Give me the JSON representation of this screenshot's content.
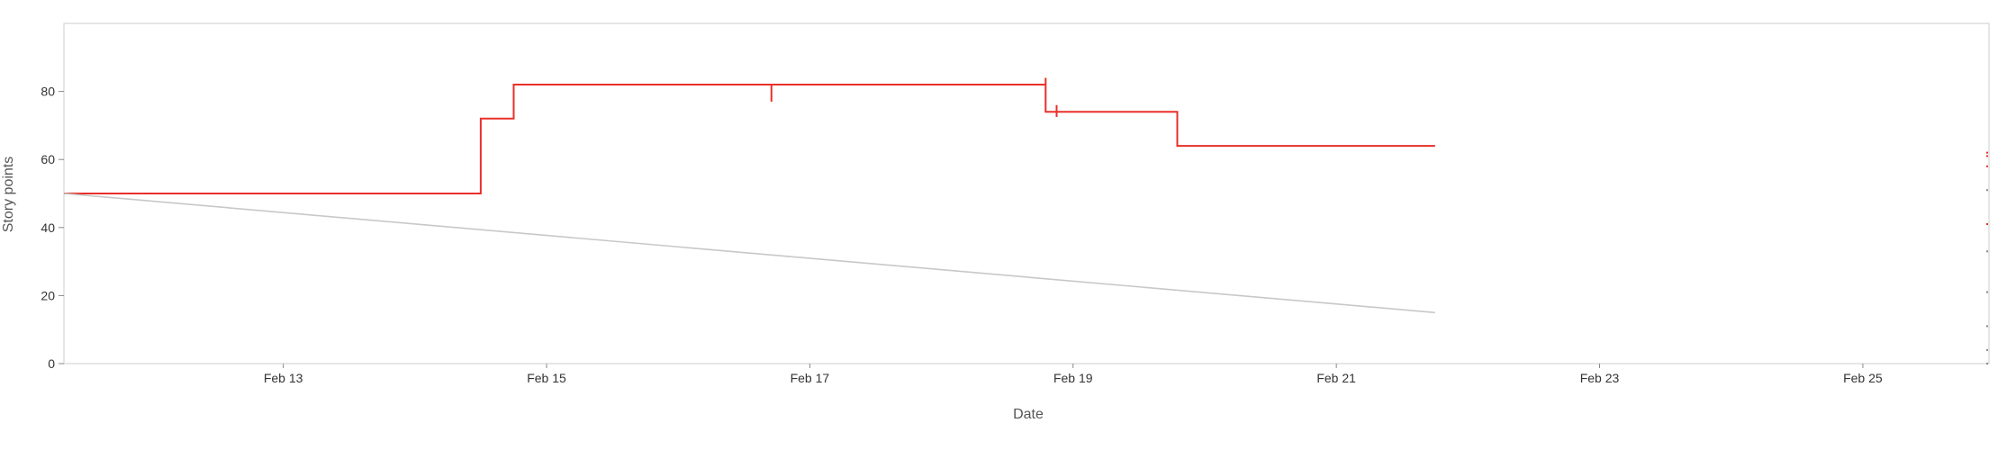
{
  "chart_data": {
    "type": "line",
    "title": "",
    "xlabel": "Date",
    "ylabel": "Story points",
    "xlim": [
      "2026-02-11T08:00",
      "2026-02-25T23:00"
    ],
    "ylim": [
      0,
      100
    ],
    "x_ticks": [
      {
        "date": "2026-02-13",
        "label": "Feb 13"
      },
      {
        "date": "2026-02-15",
        "label": "Feb 15"
      },
      {
        "date": "2026-02-17",
        "label": "Feb 17"
      },
      {
        "date": "2026-02-19",
        "label": "Feb 19"
      },
      {
        "date": "2026-02-21",
        "label": "Feb 21"
      },
      {
        "date": "2026-02-23",
        "label": "Feb 23"
      },
      {
        "date": "2026-02-25",
        "label": "Feb 25"
      }
    ],
    "y_ticks": [
      0,
      20,
      40,
      60,
      80
    ],
    "grid": false,
    "colors": {
      "remaining": "#e8302a",
      "guideline": "#c8c8c8",
      "axis": "#cccccc",
      "tick": "#888888"
    },
    "series": [
      {
        "role": "remaining",
        "step": true,
        "points": [
          [
            "2026-02-11T08:00",
            50
          ],
          [
            "2026-02-14T12:00",
            50
          ],
          [
            "2026-02-14T12:00",
            72
          ],
          [
            "2026-02-14T18:00",
            72
          ],
          [
            "2026-02-14T18:00",
            82
          ],
          [
            "2026-02-18T19:00",
            82
          ],
          [
            "2026-02-18T19:00",
            74
          ],
          [
            "2026-02-19T19:00",
            74
          ],
          [
            "2026-02-19T19:00",
            64
          ],
          [
            "2026-02-21T18:00",
            64
          ]
        ],
        "spikes": [
          {
            "x": "2026-02-16T17:00",
            "from": 82,
            "to": 77
          },
          {
            "x": "2026-02-18T19:00",
            "from": 82,
            "to": 84
          },
          {
            "x": "2026-02-18T21:00",
            "from": 74,
            "to": 72.5
          },
          {
            "x": "2026-02-18T21:00",
            "from": 74,
            "to": 76
          }
        ]
      },
      {
        "role": "guideline",
        "points": [
          [
            "2026-02-11T08:00",
            50
          ],
          [
            "2026-02-21T18:00",
            15
          ]
        ]
      }
    ]
  }
}
